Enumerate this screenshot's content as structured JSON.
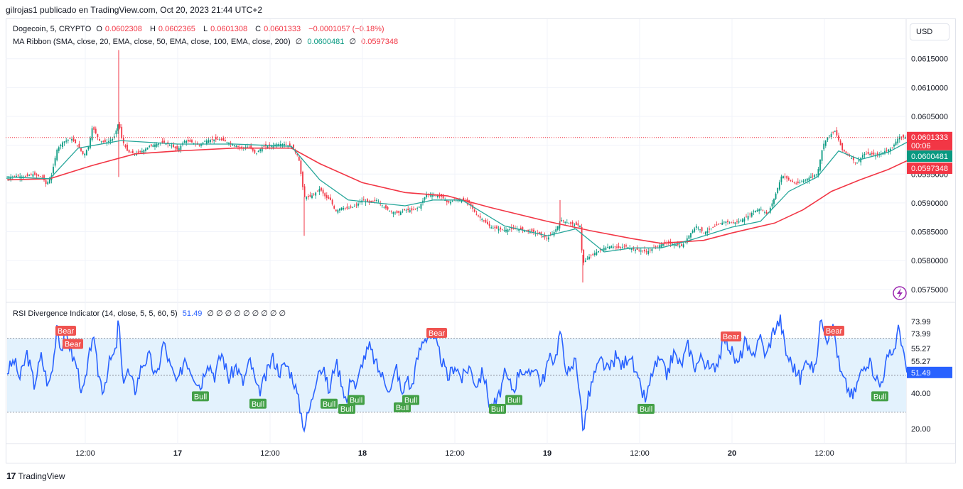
{
  "caption": "gilrojas1 publicado en TradingView.com, Oct 20, 2023 21:44 UTC+2",
  "currency_button": "USD",
  "brand": "TradingView",
  "legend": {
    "symbol": "Dogecoin, 5, CRYPTO",
    "open_label": "O",
    "open": "0.0602308",
    "high_label": "H",
    "high": "0.0602365",
    "low_label": "L",
    "low": "0.0601308",
    "close_label": "C",
    "close": "0.0601333",
    "change": "−0.0001057 (−0.18%)",
    "ma_title": "MA Ribbon (SMA, close, 20, EMA, close, 50, EMA, close, 100, EMA, close, 200)",
    "ma_null_symbol": "∅",
    "ma_value_1": "0.0600481",
    "ma_value_2": "0.0597348",
    "rsi_title": "RSI Divergence Indicator (14, close, 5, 5, 60, 5)",
    "rsi_value": "51.49",
    "rsi_nulls": "∅ ∅ ∅ ∅ ∅ ∅ ∅ ∅ ∅"
  },
  "colors": {
    "up": "#089981",
    "down": "#f23645",
    "ma_fast": "#26a69a",
    "ma_slow": "#f23645",
    "rsi_line": "#2962ff",
    "rsi_band": "#e3f2fd",
    "bull": "#43a047",
    "bear": "#ef5350"
  },
  "chart_data": [
    {
      "type": "candlestick",
      "name": "Dogecoin, 5, CRYPTO",
      "y_ticks": [
        "0.0615000",
        "0.0610000",
        "0.0605000",
        "0.0600000",
        "0.0595000",
        "0.0590000",
        "0.0585000",
        "0.0580000",
        "0.0575000"
      ],
      "ylim": [
        0.05735,
        0.06173
      ],
      "x_ticks": [
        "12:00",
        "17",
        "12:00",
        "18",
        "12:00",
        "19",
        "12:00",
        "20",
        "12:00"
      ],
      "last_price_label": "0.0601333",
      "countdown": "00:06",
      "series_labels": [
        "0.0600481",
        "0.0597348"
      ],
      "price_path": [
        [
          0,
          0.05943
        ],
        [
          12,
          0.05947
        ],
        [
          24,
          0.05945
        ],
        [
          36,
          0.0595
        ],
        [
          50,
          0.05944
        ],
        [
          55,
          0.05932
        ],
        [
          62,
          0.05945
        ],
        [
          70,
          0.05992
        ],
        [
          78,
          0.06005
        ],
        [
          90,
          0.06012
        ],
        [
          100,
          0.05998
        ],
        [
          108,
          0.05982
        ],
        [
          115,
          0.06
        ],
        [
          120,
          0.06032
        ],
        [
          130,
          0.06008
        ],
        [
          140,
          0.06005
        ],
        [
          150,
          0.06012
        ],
        [
          157,
          0.0604
        ],
        [
          162,
          0.06008
        ],
        [
          170,
          0.05988
        ],
        [
          180,
          0.05985
        ],
        [
          190,
          0.0599
        ],
        [
          200,
          0.05998
        ],
        [
          210,
          0.06002
        ],
        [
          220,
          0.06005
        ],
        [
          230,
          0.06
        ],
        [
          240,
          0.05992
        ],
        [
          250,
          0.06008
        ],
        [
          260,
          0.06005
        ],
        [
          270,
          0.06
        ],
        [
          280,
          0.06008
        ],
        [
          290,
          0.0601
        ],
        [
          300,
          0.0601
        ],
        [
          310,
          0.06005
        ],
        [
          320,
          0.06
        ],
        [
          330,
          0.05995
        ],
        [
          340,
          0.05998
        ],
        [
          350,
          0.05985
        ],
        [
          360,
          0.05998
        ],
        [
          370,
          0.05998
        ],
        [
          380,
          0.06002
        ],
        [
          390,
          0.06002
        ],
        [
          400,
          0.05998
        ],
        [
          410,
          0.0598
        ],
        [
          418,
          0.0591
        ],
        [
          425,
          0.0591
        ],
        [
          432,
          0.05915
        ],
        [
          440,
          0.05925
        ],
        [
          448,
          0.0591
        ],
        [
          455,
          0.05905
        ],
        [
          462,
          0.05885
        ],
        [
          470,
          0.05892
        ],
        [
          480,
          0.0589
        ],
        [
          490,
          0.05895
        ],
        [
          500,
          0.05905
        ],
        [
          510,
          0.059
        ],
        [
          520,
          0.05905
        ],
        [
          530,
          0.05893
        ],
        [
          540,
          0.05885
        ],
        [
          550,
          0.05882
        ],
        [
          560,
          0.05888
        ],
        [
          570,
          0.05887
        ],
        [
          580,
          0.05893
        ],
        [
          590,
          0.05915
        ],
        [
          600,
          0.05913
        ],
        [
          610,
          0.05912
        ],
        [
          620,
          0.059
        ],
        [
          630,
          0.05905
        ],
        [
          640,
          0.05905
        ],
        [
          650,
          0.059
        ],
        [
          660,
          0.0588
        ],
        [
          670,
          0.0587
        ],
        [
          680,
          0.05858
        ],
        [
          690,
          0.05855
        ],
        [
          700,
          0.05853
        ],
        [
          710,
          0.05855
        ],
        [
          720,
          0.05855
        ],
        [
          730,
          0.05852
        ],
        [
          740,
          0.0585
        ],
        [
          750,
          0.05845
        ],
        [
          760,
          0.05838
        ],
        [
          770,
          0.0585
        ],
        [
          780,
          0.0587
        ],
        [
          790,
          0.05865
        ],
        [
          800,
          0.05862
        ],
        [
          806,
          0.0586
        ],
        [
          810,
          0.05795
        ],
        [
          820,
          0.05808
        ],
        [
          830,
          0.05815
        ],
        [
          840,
          0.05822
        ],
        [
          850,
          0.05825
        ],
        [
          860,
          0.05822
        ],
        [
          870,
          0.05825
        ],
        [
          880,
          0.0582
        ],
        [
          890,
          0.05818
        ],
        [
          900,
          0.05815
        ],
        [
          910,
          0.05822
        ],
        [
          920,
          0.05828
        ],
        [
          930,
          0.0583
        ],
        [
          940,
          0.05828
        ],
        [
          950,
          0.05825
        ],
        [
          960,
          0.05845
        ],
        [
          970,
          0.0586
        ],
        [
          980,
          0.05848
        ],
        [
          990,
          0.05855
        ],
        [
          1000,
          0.05862
        ],
        [
          1010,
          0.05868
        ],
        [
          1020,
          0.05865
        ],
        [
          1030,
          0.05868
        ],
        [
          1040,
          0.05875
        ],
        [
          1050,
          0.05885
        ],
        [
          1060,
          0.0589
        ],
        [
          1070,
          0.0588
        ],
        [
          1080,
          0.0591
        ],
        [
          1090,
          0.05948
        ],
        [
          1100,
          0.0594
        ],
        [
          1110,
          0.05933
        ],
        [
          1120,
          0.05938
        ],
        [
          1130,
          0.05945
        ],
        [
          1140,
          0.0595
        ],
        [
          1148,
          0.06
        ],
        [
          1155,
          0.06015
        ],
        [
          1165,
          0.06025
        ],
        [
          1175,
          0.05992
        ],
        [
          1185,
          0.05982
        ],
        [
          1195,
          0.05968
        ],
        [
          1205,
          0.05985
        ],
        [
          1215,
          0.05985
        ],
        [
          1225,
          0.05982
        ],
        [
          1235,
          0.0599
        ],
        [
          1245,
          0.05995
        ],
        [
          1255,
          0.06015
        ],
        [
          1266,
          0.06013
        ]
      ],
      "ma_fast_path": [
        [
          0,
          0.05945
        ],
        [
          60,
          0.05942
        ],
        [
          100,
          0.05995
        ],
        [
          160,
          0.06008
        ],
        [
          240,
          0.06002
        ],
        [
          320,
          0.06002
        ],
        [
          400,
          0.05998
        ],
        [
          440,
          0.0594
        ],
        [
          480,
          0.05905
        ],
        [
          560,
          0.05895
        ],
        [
          600,
          0.05905
        ],
        [
          640,
          0.05905
        ],
        [
          700,
          0.0586
        ],
        [
          760,
          0.05843
        ],
        [
          800,
          0.05855
        ],
        [
          840,
          0.05815
        ],
        [
          880,
          0.05822
        ],
        [
          920,
          0.05822
        ],
        [
          960,
          0.05835
        ],
        [
          1020,
          0.05858
        ],
        [
          1060,
          0.05868
        ],
        [
          1100,
          0.0592
        ],
        [
          1140,
          0.05945
        ],
        [
          1170,
          0.0599
        ],
        [
          1200,
          0.05975
        ],
        [
          1240,
          0.05988
        ],
        [
          1266,
          0.06005
        ]
      ],
      "ma_slow_path": [
        [
          0,
          0.0594
        ],
        [
          60,
          0.05942
        ],
        [
          120,
          0.05965
        ],
        [
          180,
          0.05985
        ],
        [
          240,
          0.0599
        ],
        [
          320,
          0.05995
        ],
        [
          400,
          0.05995
        ],
        [
          440,
          0.05968
        ],
        [
          500,
          0.05935
        ],
        [
          560,
          0.05918
        ],
        [
          620,
          0.05912
        ],
        [
          680,
          0.05892
        ],
        [
          760,
          0.05868
        ],
        [
          820,
          0.05852
        ],
        [
          880,
          0.05838
        ],
        [
          920,
          0.0583
        ],
        [
          980,
          0.05835
        ],
        [
          1020,
          0.05848
        ],
        [
          1080,
          0.05865
        ],
        [
          1120,
          0.05888
        ],
        [
          1160,
          0.0592
        ],
        [
          1200,
          0.0594
        ],
        [
          1240,
          0.05958
        ],
        [
          1266,
          0.05973
        ]
      ]
    },
    {
      "type": "line",
      "name": "RSI Divergence Indicator (14, close, 5, 5, 60, 5)",
      "y_ticks": [
        "73.99",
        "73.99",
        "55.27",
        "55.27",
        "40.00",
        "20.00"
      ],
      "ylim": [
        15,
        84
      ],
      "band": [
        30,
        70
      ],
      "last_value_label": "51.49",
      "bull_label": "Bull",
      "bear_label": "Bear",
      "bear_x": [
        82,
        92,
        604,
        1018,
        1163
      ],
      "bull_x": [
        272,
        353,
        453,
        478,
        491,
        556,
        568,
        690,
        713,
        899,
        1228
      ],
      "rsi_path": [
        [
          0,
          52
        ],
        [
          10,
          58
        ],
        [
          18,
          48
        ],
        [
          28,
          62
        ],
        [
          38,
          45
        ],
        [
          48,
          60
        ],
        [
          58,
          44
        ],
        [
          65,
          56
        ],
        [
          70,
          78
        ],
        [
          76,
          64
        ],
        [
          84,
          72
        ],
        [
          92,
          60
        ],
        [
          98,
          55
        ],
        [
          106,
          40
        ],
        [
          112,
          50
        ],
        [
          120,
          72
        ],
        [
          128,
          52
        ],
        [
          135,
          42
        ],
        [
          145,
          58
        ],
        [
          153,
          62
        ],
        [
          157,
          82
        ],
        [
          162,
          48
        ],
        [
          170,
          52
        ],
        [
          180,
          42
        ],
        [
          190,
          56
        ],
        [
          200,
          60
        ],
        [
          210,
          48
        ],
        [
          220,
          68
        ],
        [
          230,
          54
        ],
        [
          240,
          45
        ],
        [
          250,
          60
        ],
        [
          260,
          52
        ],
        [
          272,
          44
        ],
        [
          282,
          58
        ],
        [
          292,
          50
        ],
        [
          302,
          62
        ],
        [
          312,
          48
        ],
        [
          322,
          55
        ],
        [
          332,
          46
        ],
        [
          342,
          58
        ],
        [
          353,
          40
        ],
        [
          363,
          48
        ],
        [
          373,
          60
        ],
        [
          383,
          52
        ],
        [
          393,
          56
        ],
        [
          403,
          48
        ],
        [
          410,
          36
        ],
        [
          418,
          22
        ],
        [
          428,
          35
        ],
        [
          438,
          55
        ],
        [
          448,
          50
        ],
        [
          453,
          40
        ],
        [
          462,
          58
        ],
        [
          470,
          48
        ],
        [
          478,
          35
        ],
        [
          485,
          52
        ],
        [
          491,
          42
        ],
        [
          500,
          58
        ],
        [
          510,
          65
        ],
        [
          520,
          55
        ],
        [
          530,
          48
        ],
        [
          540,
          42
        ],
        [
          548,
          55
        ],
        [
          556,
          38
        ],
        [
          562,
          50
        ],
        [
          568,
          42
        ],
        [
          578,
          60
        ],
        [
          586,
          70
        ],
        [
          594,
          72
        ],
        [
          604,
          66
        ],
        [
          612,
          58
        ],
        [
          620,
          48
        ],
        [
          630,
          56
        ],
        [
          640,
          48
        ],
        [
          650,
          55
        ],
        [
          660,
          45
        ],
        [
          670,
          52
        ],
        [
          680,
          32
        ],
        [
          690,
          36
        ],
        [
          700,
          50
        ],
        [
          713,
          42
        ],
        [
          722,
          55
        ],
        [
          732,
          48
        ],
        [
          742,
          56
        ],
        [
          752,
          45
        ],
        [
          762,
          58
        ],
        [
          772,
          60
        ],
        [
          778,
          74
        ],
        [
          784,
          58
        ],
        [
          792,
          50
        ],
        [
          800,
          60
        ],
        [
          806,
          40
        ],
        [
          810,
          20
        ],
        [
          818,
          38
        ],
        [
          826,
          50
        ],
        [
          836,
          58
        ],
        [
          846,
          52
        ],
        [
          856,
          60
        ],
        [
          866,
          55
        ],
        [
          876,
          62
        ],
        [
          886,
          48
        ],
        [
          899,
          36
        ],
        [
          908,
          52
        ],
        [
          918,
          58
        ],
        [
          928,
          50
        ],
        [
          938,
          62
        ],
        [
          948,
          55
        ],
        [
          958,
          66
        ],
        [
          968,
          55
        ],
        [
          978,
          60
        ],
        [
          990,
          52
        ],
        [
          1000,
          58
        ],
        [
          1010,
          70
        ],
        [
          1018,
          64
        ],
        [
          1028,
          55
        ],
        [
          1038,
          68
        ],
        [
          1048,
          58
        ],
        [
          1058,
          72
        ],
        [
          1068,
          60
        ],
        [
          1078,
          74
        ],
        [
          1088,
          80
        ],
        [
          1096,
          62
        ],
        [
          1106,
          55
        ],
        [
          1116,
          48
        ],
        [
          1126,
          60
        ],
        [
          1136,
          52
        ],
        [
          1146,
          82
        ],
        [
          1154,
          70
        ],
        [
          1163,
          76
        ],
        [
          1172,
          52
        ],
        [
          1180,
          45
        ],
        [
          1190,
          38
        ],
        [
          1200,
          50
        ],
        [
          1210,
          58
        ],
        [
          1220,
          52
        ],
        [
          1228,
          44
        ],
        [
          1238,
          58
        ],
        [
          1248,
          64
        ],
        [
          1255,
          76
        ],
        [
          1262,
          62
        ],
        [
          1266,
          51.49
        ]
      ]
    }
  ]
}
